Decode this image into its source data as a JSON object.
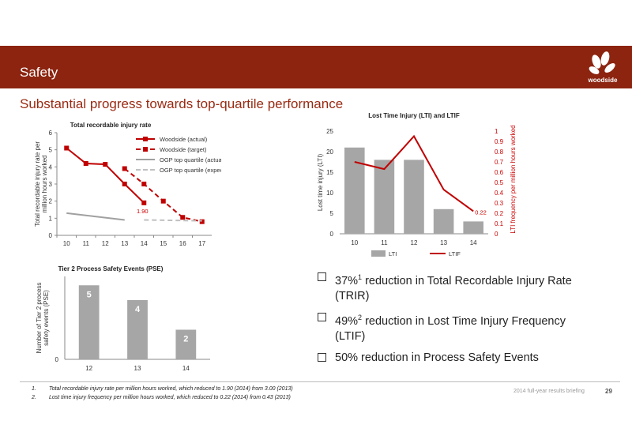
{
  "header": {
    "title": "Safety"
  },
  "subtitle": "Substantial progress towards top-quartile performance",
  "logo": {
    "text": "woodside",
    "color": "#ffffff"
  },
  "colors": {
    "brand": "#8c2410",
    "red": "#c00000",
    "bar": "#a6a6a6",
    "grey_line": "#a0a0a0",
    "grey_dash": "#c0c0c0"
  },
  "chart_data": [
    {
      "type": "line",
      "title": "Total recordable injury rate",
      "ylabel": "Total recordable injury rate per million hours worked",
      "xlabel": "",
      "categories": [
        "10",
        "11",
        "12",
        "13",
        "14",
        "15",
        "16",
        "17"
      ],
      "ylim": [
        0,
        6
      ],
      "yticks": [
        "0",
        "1",
        "2",
        "3",
        "4",
        "5",
        "6"
      ],
      "legend": "top-right",
      "series": [
        {
          "name": "Woodside (actual)",
          "style": "solid-marker",
          "color": "#c00000",
          "x": [
            "10",
            "11",
            "12",
            "13",
            "14"
          ],
          "values": [
            5.1,
            4.2,
            4.15,
            3.0,
            1.9
          ]
        },
        {
          "name": "Woodside (target)",
          "style": "dashed-marker",
          "color": "#c00000",
          "x": [
            "13",
            "14",
            "15",
            "16",
            "17"
          ],
          "values": [
            3.9,
            3.0,
            2.0,
            1.05,
            0.8
          ]
        },
        {
          "name": "OGP top quartile (actual)",
          "style": "solid",
          "color": "#a0a0a0",
          "x": [
            "10",
            "13"
          ],
          "values": [
            1.3,
            0.9
          ]
        },
        {
          "name": "OGP top quartile (expected)",
          "style": "dashed",
          "color": "#c0c0c0",
          "x": [
            "14",
            "17"
          ],
          "values": [
            0.9,
            0.85
          ]
        }
      ],
      "annotations": [
        {
          "x": "14",
          "y": 1.9,
          "text": "1.90"
        }
      ]
    },
    {
      "type": "bar",
      "title": "Lost Time Injury (LTI) and LTIF",
      "categories": [
        "10",
        "11",
        "12",
        "13",
        "14"
      ],
      "ylabel": "Lost time injury (LTI)",
      "ylabel_right": "LTI frequency per million hours worked",
      "ylim": [
        0,
        25
      ],
      "yticks": [
        "0",
        "5",
        "10",
        "15",
        "20",
        "25"
      ],
      "ylim_right": [
        0,
        1
      ],
      "yticks_right": [
        "0",
        "0.1",
        "0.2",
        "0.3",
        "0.4",
        "0.5",
        "0.6",
        "0.7",
        "0.8",
        "0.9",
        "1"
      ],
      "legend": "bottom",
      "series": [
        {
          "name": "LTI",
          "type": "bar",
          "axis": "left",
          "color": "#a6a6a6",
          "values": [
            21,
            18,
            18,
            6,
            3
          ]
        },
        {
          "name": "LTIF",
          "type": "line",
          "axis": "right",
          "color": "#c00000",
          "values": [
            0.7,
            0.63,
            0.95,
            0.43,
            0.22
          ]
        }
      ],
      "annotations": [
        {
          "x": "14",
          "y": 0.22,
          "text": "0.22"
        }
      ]
    },
    {
      "type": "bar",
      "title": "Tier 2 Process Safety Events (PSE)",
      "ylabel": "Number of Tier 2 process safety events (PSE)",
      "categories": [
        "12",
        "13",
        "14"
      ],
      "values": [
        5,
        4,
        2
      ],
      "ylim": [
        0,
        5.6
      ],
      "yticks": [
        "0"
      ],
      "data_labels": [
        "5",
        "4",
        "2"
      ],
      "color": "#a6a6a6"
    }
  ],
  "bullets": [
    {
      "pre": "37%",
      "sup": "1",
      "post": " reduction in Total Recordable Injury Rate (TRIR)"
    },
    {
      "pre": "49%",
      "sup": "2",
      "post": " reduction in Lost Time Injury Frequency (LTIF)"
    },
    {
      "pre": "50% reduction in Process Safety Events",
      "sup": "",
      "post": ""
    }
  ],
  "footnotes": [
    {
      "num": "1.",
      "text": "Total recordable injury rate per million hours worked, which reduced to 1.90 (2014) from 3.00 (2013)"
    },
    {
      "num": "2.",
      "text": "Lost time injury frequency per million hours worked, which reduced to 0.22 (2014) from 0.43 (2013)"
    }
  ],
  "footer": {
    "briefing": "2014 full-year results briefing",
    "page": "29"
  }
}
